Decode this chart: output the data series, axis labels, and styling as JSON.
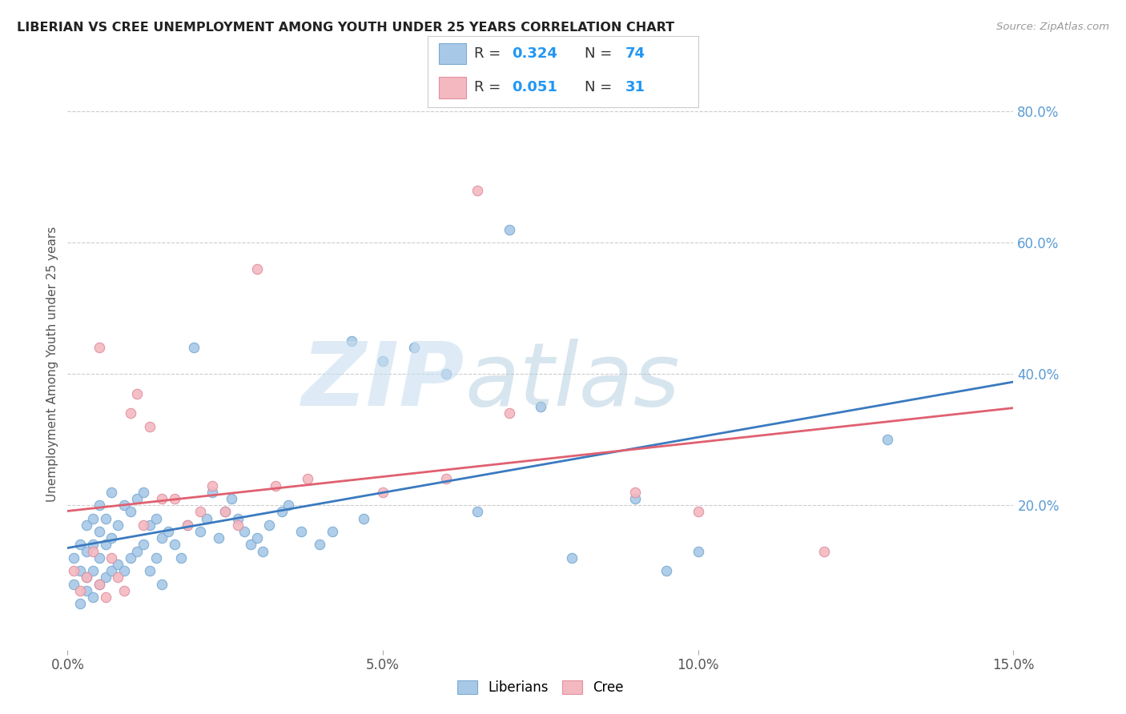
{
  "title": "LIBERIAN VS CREE UNEMPLOYMENT AMONG YOUTH UNDER 25 YEARS CORRELATION CHART",
  "source": "Source: ZipAtlas.com",
  "ylabel": "Unemployment Among Youth under 25 years",
  "xlim": [
    0.0,
    0.15
  ],
  "ylim": [
    -0.02,
    0.85
  ],
  "xticks": [
    0.0,
    0.05,
    0.1,
    0.15
  ],
  "xticklabels": [
    "0.0%",
    "5.0%",
    "10.0%",
    "15.0%"
  ],
  "yticks_right": [
    0.2,
    0.4,
    0.6,
    0.8
  ],
  "yticklabels_right": [
    "20.0%",
    "40.0%",
    "60.0%",
    "80.0%"
  ],
  "liberian_color": "#a8c8e8",
  "cree_color": "#f4b8c0",
  "liberian_line_color": "#3a7abf",
  "cree_line_color": "#e06070",
  "watermark_zip_color": "#c8dff0",
  "watermark_atlas_color": "#b0cce0",
  "liberian_x": [
    0.001,
    0.001,
    0.002,
    0.002,
    0.002,
    0.003,
    0.003,
    0.003,
    0.003,
    0.004,
    0.004,
    0.004,
    0.004,
    0.005,
    0.005,
    0.005,
    0.005,
    0.006,
    0.006,
    0.006,
    0.007,
    0.007,
    0.007,
    0.008,
    0.008,
    0.009,
    0.009,
    0.01,
    0.01,
    0.011,
    0.011,
    0.012,
    0.012,
    0.013,
    0.013,
    0.014,
    0.014,
    0.015,
    0.015,
    0.016,
    0.017,
    0.018,
    0.019,
    0.02,
    0.021,
    0.022,
    0.023,
    0.024,
    0.025,
    0.026,
    0.027,
    0.028,
    0.029,
    0.03,
    0.031,
    0.032,
    0.034,
    0.035,
    0.037,
    0.04,
    0.042,
    0.045,
    0.047,
    0.05,
    0.055,
    0.06,
    0.065,
    0.07,
    0.075,
    0.08,
    0.09,
    0.095,
    0.1,
    0.13
  ],
  "liberian_y": [
    0.08,
    0.12,
    0.05,
    0.1,
    0.14,
    0.07,
    0.09,
    0.13,
    0.17,
    0.06,
    0.1,
    0.14,
    0.18,
    0.08,
    0.12,
    0.16,
    0.2,
    0.09,
    0.14,
    0.18,
    0.1,
    0.15,
    0.22,
    0.11,
    0.17,
    0.1,
    0.2,
    0.12,
    0.19,
    0.13,
    0.21,
    0.14,
    0.22,
    0.1,
    0.17,
    0.12,
    0.18,
    0.08,
    0.15,
    0.16,
    0.14,
    0.12,
    0.17,
    0.44,
    0.16,
    0.18,
    0.22,
    0.15,
    0.19,
    0.21,
    0.18,
    0.16,
    0.14,
    0.15,
    0.13,
    0.17,
    0.19,
    0.2,
    0.16,
    0.14,
    0.16,
    0.45,
    0.18,
    0.42,
    0.44,
    0.4,
    0.19,
    0.62,
    0.35,
    0.12,
    0.21,
    0.1,
    0.13,
    0.3
  ],
  "cree_x": [
    0.001,
    0.002,
    0.003,
    0.004,
    0.005,
    0.005,
    0.006,
    0.007,
    0.008,
    0.009,
    0.01,
    0.011,
    0.012,
    0.013,
    0.015,
    0.017,
    0.019,
    0.021,
    0.023,
    0.025,
    0.027,
    0.03,
    0.033,
    0.038,
    0.05,
    0.06,
    0.065,
    0.07,
    0.09,
    0.1,
    0.12
  ],
  "cree_y": [
    0.1,
    0.07,
    0.09,
    0.13,
    0.08,
    0.44,
    0.06,
    0.12,
    0.09,
    0.07,
    0.34,
    0.37,
    0.17,
    0.32,
    0.21,
    0.21,
    0.17,
    0.19,
    0.23,
    0.19,
    0.17,
    0.56,
    0.23,
    0.24,
    0.22,
    0.24,
    0.68,
    0.34,
    0.22,
    0.19,
    0.13
  ]
}
